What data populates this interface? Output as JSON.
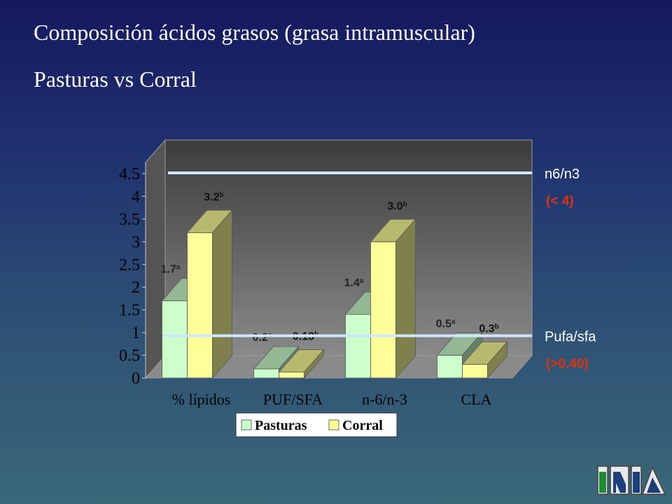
{
  "slide": {
    "title": "Composición ácidos grasos (grasa intramuscular)",
    "subtitle": "Pasturas vs Corral"
  },
  "chart_data": {
    "type": "bar",
    "style": "3d-clustered",
    "categories": [
      "% lípidos",
      "PUF/SFA",
      "n-6/n-3",
      "CLA"
    ],
    "series": [
      {
        "name": "Pasturas",
        "values": [
          1.7,
          0.2,
          1.4,
          0.5
        ],
        "color": "#ccffcc",
        "labels": [
          "1.7",
          "0.2",
          "1.4",
          "0.5"
        ],
        "superscripts": [
          "a",
          "a",
          "a",
          "a"
        ]
      },
      {
        "name": "Corral",
        "values": [
          3.2,
          0.13,
          3.0,
          0.3
        ],
        "color": "#ffff99",
        "labels": [
          "3.2",
          "0.13",
          "3.0",
          "0.3"
        ],
        "superscripts": [
          "b",
          "b",
          "b",
          "b"
        ]
      }
    ],
    "ylim": [
      0,
      4.5
    ],
    "yticks": [
      "0",
      "0.5",
      "1",
      "1.5",
      "2",
      "2.5",
      "3",
      "3.5",
      "4",
      "4.5"
    ],
    "grid": false,
    "legend_position": "bottom",
    "reference_lines": [
      {
        "value": 4.5,
        "label": "n6/n3",
        "sublabel": "(< 4)"
      },
      {
        "value": 0.9,
        "label": "Pufa/sfa",
        "sublabel": "(>0.40)"
      }
    ],
    "colors": {
      "label_accent": "#dd3311",
      "plot_wall": "#6e6e6e",
      "floor": "#8a8a8a",
      "ref_line": "#cfe6ff"
    }
  },
  "logo": {
    "text": "INIA",
    "icon": "inia-logo"
  }
}
